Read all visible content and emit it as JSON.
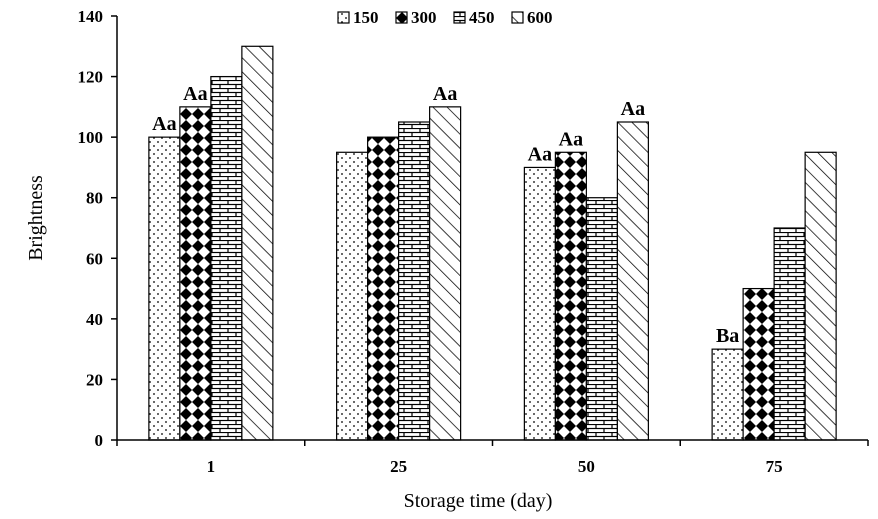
{
  "chart_data": {
    "type": "bar",
    "categories": [
      "1",
      "25",
      "50",
      "75"
    ],
    "series": [
      {
        "name": "150",
        "values": [
          100,
          95,
          90,
          30
        ],
        "pattern": "dots"
      },
      {
        "name": "300",
        "values": [
          110,
          100,
          95,
          50
        ],
        "pattern": "diamonds"
      },
      {
        "name": "450",
        "values": [
          120,
          105,
          80,
          70
        ],
        "pattern": "bricks"
      },
      {
        "name": "600",
        "values": [
          130,
          110,
          105,
          95
        ],
        "pattern": "diagonal"
      }
    ],
    "annotations": [
      {
        "category": "1",
        "series": "150",
        "text": "Aa"
      },
      {
        "category": "1",
        "series": "300",
        "text": "Aa"
      },
      {
        "category": "25",
        "series": "600",
        "text": "Aa"
      },
      {
        "category": "50",
        "series": "150",
        "text": "Aa"
      },
      {
        "category": "50",
        "series": "300",
        "text": "Aa"
      },
      {
        "category": "50",
        "series": "600",
        "text": "Aa"
      },
      {
        "category": "75",
        "series": "150",
        "text": "Ba"
      }
    ],
    "xlabel": "Storage time (day)",
    "ylabel": "Brightness",
    "ylim": [
      0,
      140
    ],
    "yticks": [
      0,
      20,
      40,
      60,
      80,
      100,
      120,
      140
    ],
    "grid": false,
    "legend_position": "top-center"
  }
}
